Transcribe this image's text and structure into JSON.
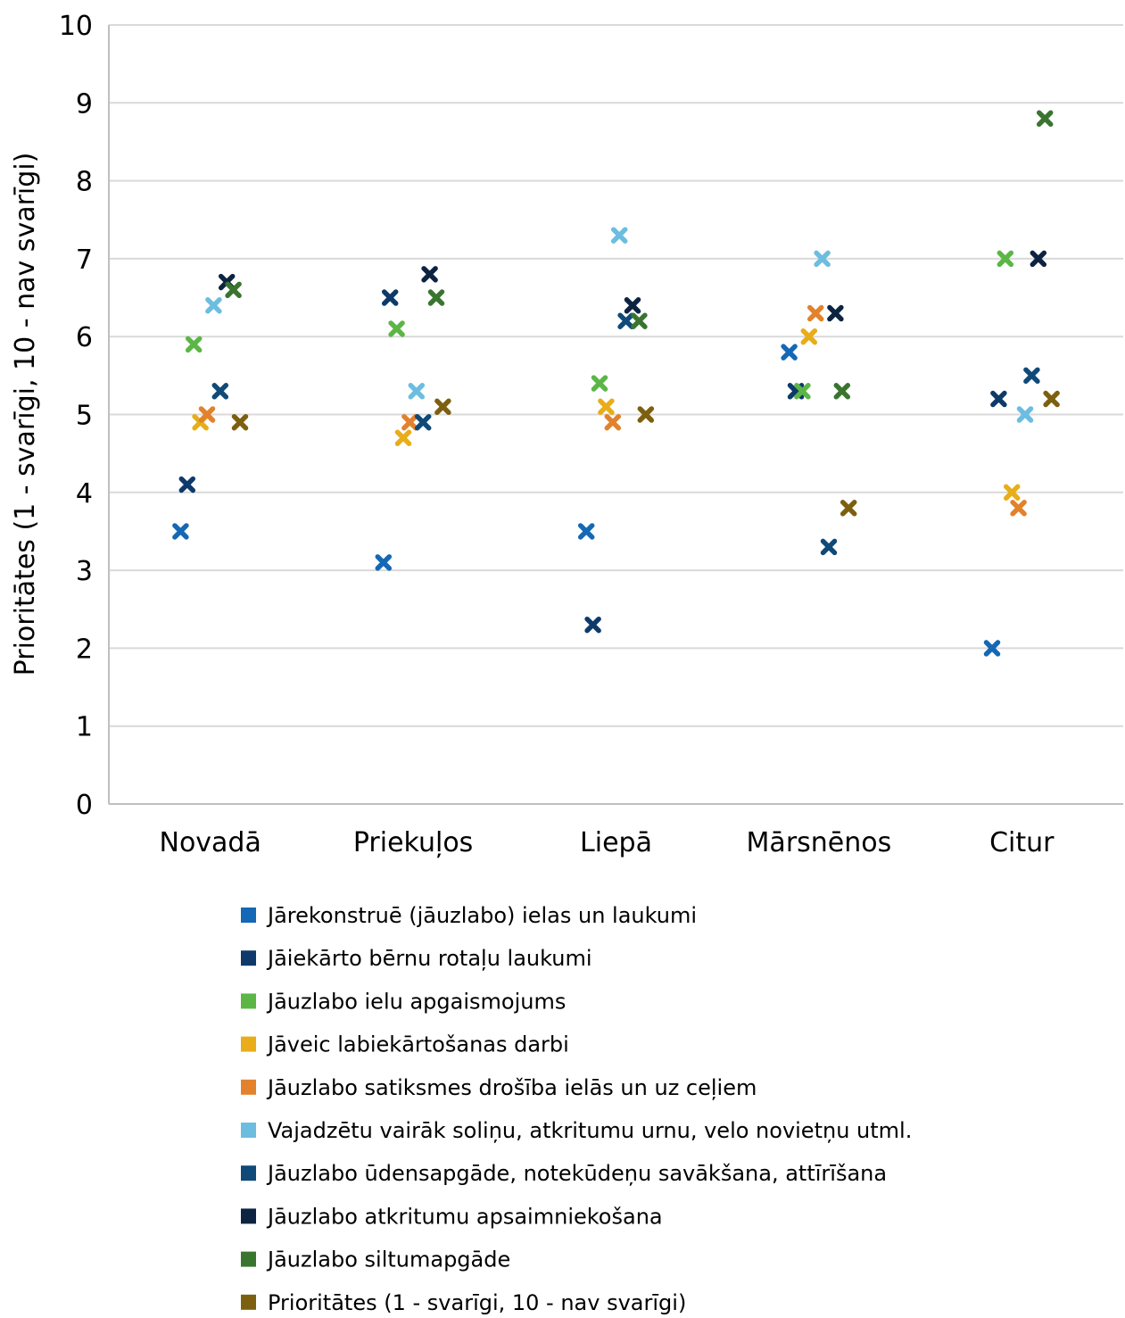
{
  "chart_data": {
    "type": "scatter",
    "ylabel": "Prioritātes (1 - svarīgi, 10 - nav svarīgi)",
    "ylim": [
      0,
      10
    ],
    "yticks": [
      "0",
      "1",
      "2",
      "3",
      "4",
      "5",
      "6",
      "7",
      "8",
      "9",
      "10"
    ],
    "categories": [
      "Novadā",
      "Priekuļos",
      "Liepā",
      "Mārsnēnos",
      "Citur"
    ],
    "grid": "horizontal",
    "legend_position": "bottom",
    "series": [
      {
        "name": "Jārekonstruē (jāuzlabo) ielas un laukumi",
        "color": "#1468b5",
        "values": [
          3.5,
          3.1,
          3.5,
          5.8,
          2.0
        ]
      },
      {
        "name": "Jāiekārto bērnu rotaļu laukumi",
        "color": "#0d3a6b",
        "values": [
          4.1,
          6.5,
          2.3,
          5.3,
          5.2
        ]
      },
      {
        "name": "Jāuzlabo ielu apgaismojums",
        "color": "#5cb646",
        "values": [
          5.9,
          6.1,
          5.4,
          5.3,
          7.0
        ]
      },
      {
        "name": "Jāveic labiekārtošanas darbi",
        "color": "#e8ad18",
        "values": [
          4.9,
          4.7,
          5.1,
          6.0,
          4.0
        ]
      },
      {
        "name": "Jāuzlabo satiksmes drošība ielās un uz ceļiem",
        "color": "#e2822c",
        "values": [
          5.0,
          4.9,
          4.9,
          6.3,
          3.8
        ]
      },
      {
        "name": "Vajadzētu vairāk soliņu, atkritumu urnu, velo novietņu utml.",
        "color": "#6cbde0",
        "values": [
          6.4,
          5.3,
          7.3,
          7.0,
          5.0
        ]
      },
      {
        "name": "Jāuzlabo ūdensapgāde, notekūdeņu savākšana, attīrīšana",
        "color": "#0f4a78",
        "values": [
          5.3,
          4.9,
          6.2,
          3.3,
          5.5
        ]
      },
      {
        "name": "Jāuzlabo atkritumu apsaimniekošana",
        "color": "#0c2441",
        "values": [
          6.7,
          6.8,
          6.4,
          6.3,
          7.0
        ]
      },
      {
        "name": "Jāuzlabo siltumapgāde",
        "color": "#3a7530",
        "values": [
          6.6,
          6.5,
          6.2,
          5.3,
          8.8
        ]
      },
      {
        "name": "Prioritātes (1 - svarīgi, 10 - nav svarīgi)",
        "color": "#7d600f",
        "values": [
          4.9,
          5.1,
          5.0,
          3.8,
          5.2
        ]
      }
    ]
  }
}
